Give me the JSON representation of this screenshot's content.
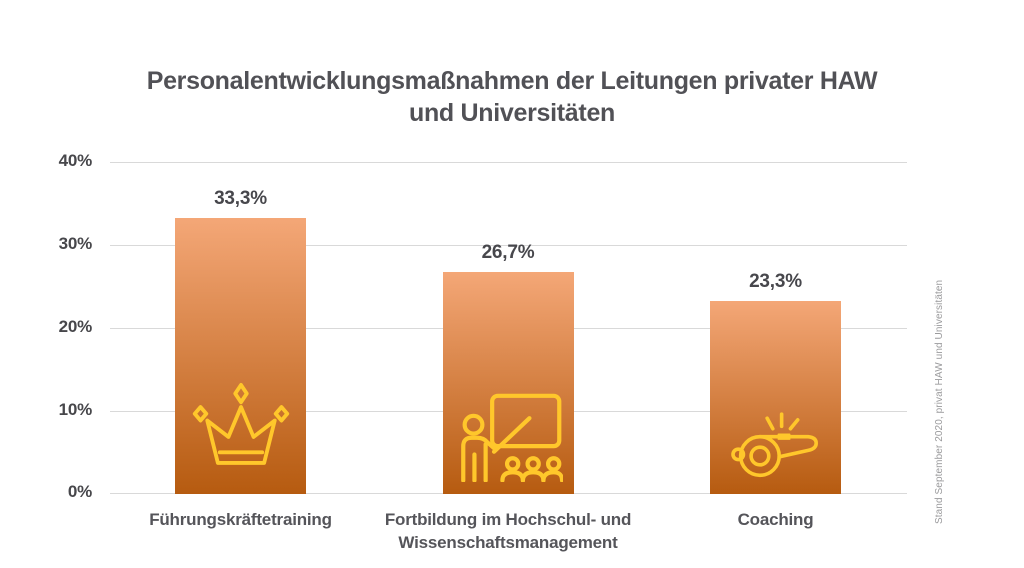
{
  "chart_data": {
    "type": "bar",
    "title": "Personalentwicklungsmaßnahmen der Leitungen privater HAW und Universitäten",
    "categories": [
      "Führungskräftetraining",
      "Fortbildung im Hochschul- und Wissenschaftsmanagement",
      "Coaching"
    ],
    "values": [
      33.3,
      26.7,
      23.3
    ],
    "value_labels": [
      "33,3%",
      "26,7%",
      "23,3%"
    ],
    "y_ticks": [
      "40%",
      "30%",
      "20%",
      "10%",
      "0%"
    ],
    "ylim": [
      0,
      40
    ],
    "grid": true,
    "legend": "none",
    "icons": [
      "crown-icon",
      "teacher-presentation-icon",
      "whistle-icon"
    ],
    "source_note": "Stand September 2020, privat HAW und Universitäten",
    "colors": {
      "bar_gradient_top": "#F4A777",
      "bar_gradient_bottom": "#B65B10",
      "icon_stroke": "#FFC72B",
      "title_text": "#515156",
      "axis_text": "#47474B",
      "value_text": "#47474C",
      "category_text": "#55555A",
      "grid_line": "#D9D9D9",
      "source_text": "#9B9B9D"
    }
  }
}
